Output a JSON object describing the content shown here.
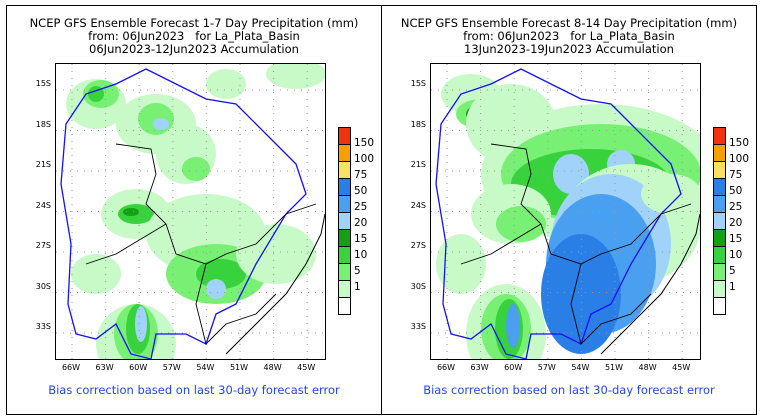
{
  "panels": [
    {
      "title_line1": "NCEP GFS Ensemble Forecast 1-7 Day Precipitation (mm)",
      "title_line2": "from: 06Jun2023   for La_Plata_Basin",
      "title_line3": "06Jun2023-12Jun2023 Accumulation",
      "footer": "Bias correction based on last 30-day forecast error"
    },
    {
      "title_line1": "NCEP GFS Ensemble Forecast 8-14 Day Precipitation (mm)",
      "title_line2": "from: 06Jun2023   for La_Plata_Basin",
      "title_line3": "13Jun2023-19Jun2023 Accumulation",
      "footer": "Bias correction based on last 30-day forecast error"
    }
  ],
  "lat_ticks": [
    "15S",
    "18S",
    "21S",
    "24S",
    "27S",
    "30S",
    "33S"
  ],
  "lon_ticks": [
    "66W",
    "63W",
    "60W",
    "57W",
    "54W",
    "51W",
    "48W",
    "45W"
  ],
  "legend": {
    "labels": [
      "150",
      "100",
      "75",
      "50",
      "25",
      "20",
      "15",
      "10",
      "5",
      "1"
    ],
    "colors": [
      "#f0320f",
      "#f5a000",
      "#fae164",
      "#2a7fe6",
      "#4aa0f0",
      "#a0d2fa",
      "#14a014",
      "#37d23c",
      "#78f073",
      "#c8fac8",
      "#ffffff"
    ]
  },
  "colors": {
    "basin_outline": "#1010ff",
    "border": "#000000",
    "footer_text": "#2244ff"
  }
}
